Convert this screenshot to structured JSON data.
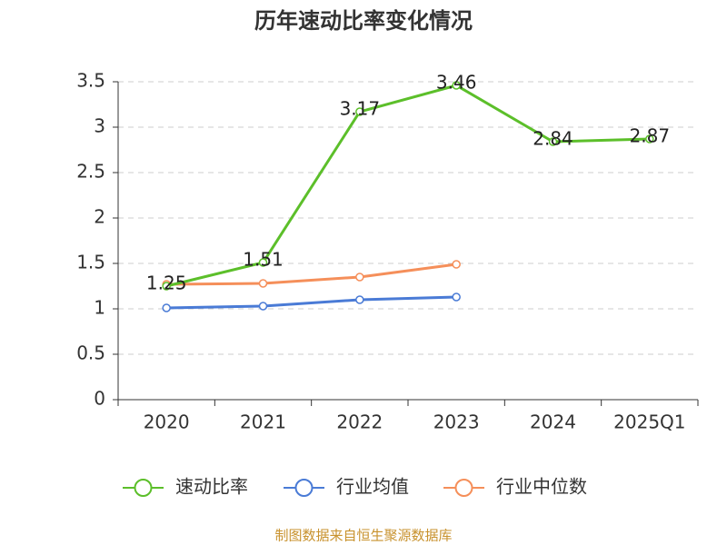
{
  "chart_data": {
    "type": "line",
    "title": "历年速动比率变化情况",
    "categories": [
      "2020",
      "2021",
      "2022",
      "2023",
      "2024",
      "2025Q1"
    ],
    "series": [
      {
        "name": "速动比率",
        "color": "#5cbf2a",
        "values": [
          1.25,
          1.51,
          3.17,
          3.46,
          2.84,
          2.87
        ],
        "show_labels": true
      },
      {
        "name": "行业均值",
        "color": "#4a7bd6",
        "values": [
          1.01,
          1.03,
          1.1,
          1.13,
          null,
          null
        ]
      },
      {
        "name": "行业中位数",
        "color": "#f58f5a",
        "values": [
          1.27,
          1.28,
          1.35,
          1.49,
          null,
          null
        ]
      }
    ],
    "ylim": [
      0,
      3.5
    ],
    "yticks": [
      0,
      0.5,
      1,
      1.5,
      2,
      2.5,
      3,
      3.5
    ],
    "grid": true,
    "legend": "bottom",
    "source": "制图数据来自恒生聚源数据库"
  }
}
